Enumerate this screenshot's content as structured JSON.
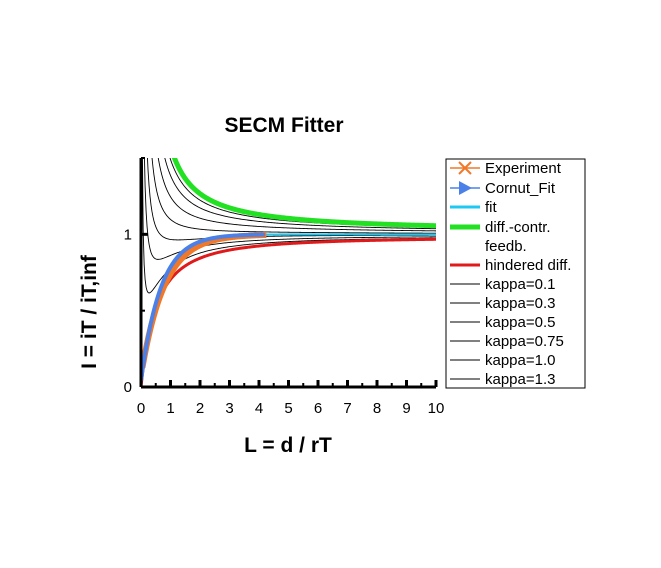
{
  "chart_data": {
    "type": "line",
    "title": "SECM Fitter",
    "xlabel": "L = d / rT",
    "ylabel": "I = iT / iT,inf",
    "xlim": [
      0,
      10
    ],
    "ylim": [
      0,
      1.5
    ],
    "x_ticks": [
      "0",
      "1",
      "2",
      "3",
      "4",
      "5",
      "6",
      "7",
      "8",
      "9",
      "10"
    ],
    "y_ticks": [
      "0",
      "1"
    ],
    "grid": false,
    "legend_position": "right",
    "legend": [
      {
        "label": "Experiment",
        "color": "#f07828",
        "style": "cross"
      },
      {
        "label": "Cornut_Fit",
        "color": "#4a80e8",
        "style": "triangle"
      },
      {
        "label": "fit",
        "color": "#1ec8f0",
        "style": "line"
      },
      {
        "label": "diff.-contr. feedb.",
        "color": "#22e022",
        "style": "thick"
      },
      {
        "label": "hindered diff.",
        "color": "#e01a1a",
        "style": "line"
      },
      {
        "label": "kappa=0.1",
        "color": "#000000",
        "style": "thin"
      },
      {
        "label": "kappa=0.3",
        "color": "#000000",
        "style": "thin"
      },
      {
        "label": "kappa=0.5",
        "color": "#000000",
        "style": "thin"
      },
      {
        "label": "kappa=0.75",
        "color": "#000000",
        "style": "thin"
      },
      {
        "label": "kappa=1.0",
        "color": "#000000",
        "style": "thin"
      },
      {
        "label": "kappa=1.3",
        "color": "#000000",
        "style": "thin"
      }
    ],
    "series": [
      {
        "name": "Experiment",
        "color": "#f07828",
        "x_range": [
          0.05,
          4.25
        ],
        "approx_values": [
          [
            0.05,
            0.1
          ],
          [
            0.5,
            0.55
          ],
          [
            1.0,
            0.75
          ],
          [
            2.0,
            0.9
          ],
          [
            3.0,
            0.95
          ],
          [
            4.25,
            0.99
          ]
        ]
      },
      {
        "name": "Cornut_Fit",
        "color": "#4a80e8",
        "x_range": [
          0.0,
          4.2
        ],
        "approx_values": [
          [
            0.0,
            0.04
          ],
          [
            0.5,
            0.6
          ],
          [
            1.0,
            0.8
          ],
          [
            2.0,
            0.93
          ],
          [
            3.0,
            0.97
          ],
          [
            4.2,
            1.0
          ]
        ]
      },
      {
        "name": "fit",
        "color": "#1ec8f0",
        "x_range": [
          0.0,
          10.0
        ],
        "approx_values": [
          [
            0.0,
            0.04
          ],
          [
            1.0,
            0.8
          ],
          [
            4.0,
            0.99
          ],
          [
            10.0,
            1.0
          ]
        ]
      },
      {
        "name": "diff.-contr. feedb.",
        "color": "#22e022",
        "x_range": [
          1.0,
          10.0
        ],
        "approx_values": [
          [
            1.0,
            1.5
          ],
          [
            2.0,
            1.26
          ],
          [
            3.0,
            1.17
          ],
          [
            5.0,
            1.09
          ],
          [
            10.0,
            1.04
          ]
        ]
      },
      {
        "name": "hindered diff.",
        "color": "#e01a1a",
        "x_range": [
          0.0,
          10.0
        ],
        "approx_values": [
          [
            0.0,
            0.0
          ],
          [
            1.0,
            0.53
          ],
          [
            2.0,
            0.74
          ],
          [
            5.0,
            0.91
          ],
          [
            10.0,
            0.97
          ]
        ]
      },
      {
        "name": "kappa=0.1",
        "color": "#000000"
      },
      {
        "name": "kappa=0.3",
        "color": "#000000"
      },
      {
        "name": "kappa=0.5",
        "color": "#000000"
      },
      {
        "name": "kappa=0.75",
        "color": "#000000"
      },
      {
        "name": "kappa=1.0",
        "color": "#000000"
      },
      {
        "name": "kappa=1.3",
        "color": "#000000"
      }
    ]
  }
}
